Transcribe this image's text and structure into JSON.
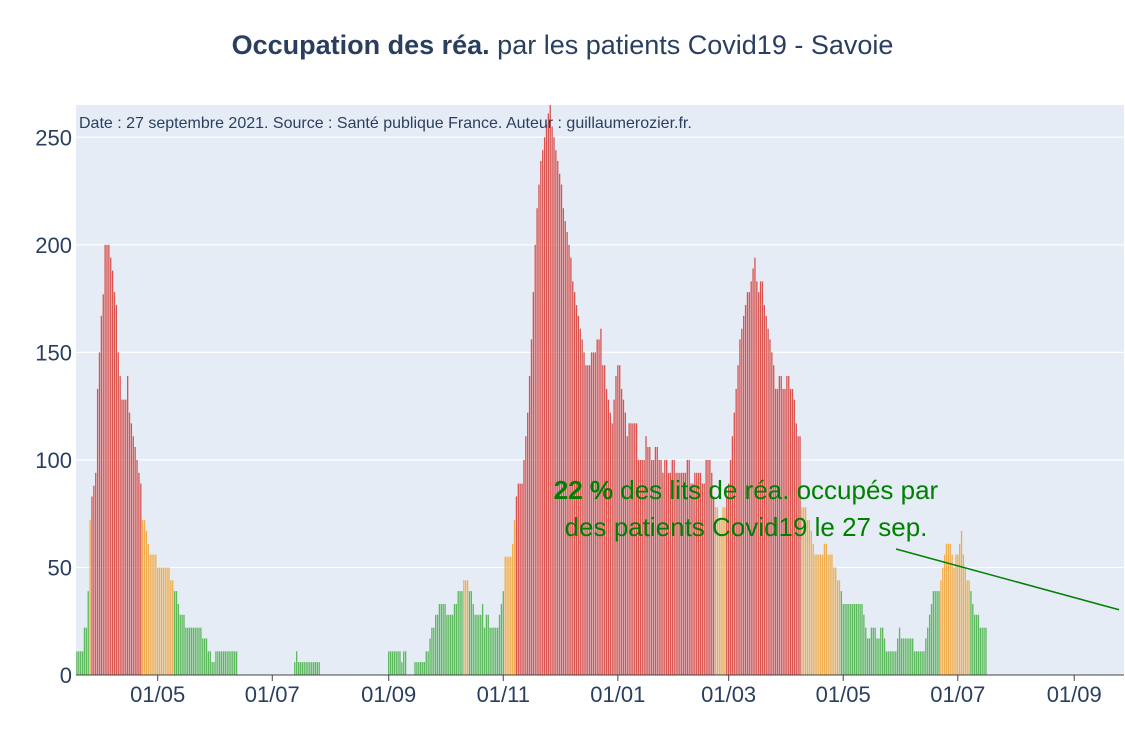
{
  "title": {
    "bold": "Occupation des réa.",
    "rest": " par les patients Covid19 - Savoie"
  },
  "colors": {
    "plot_bg": "#e5ecf6",
    "grid": "#ffffff",
    "red": "#d9534f",
    "orange": "#f0ad4e",
    "green": "#5cb85c",
    "annotation": "#008000",
    "text": "#2a3f5f"
  },
  "chart_data": {
    "type": "bar",
    "title": "Occupation des réa. par les patients Covid19 - Savoie",
    "source_note": "Date : 27 septembre 2021. Source : Santé publique France. Auteur : guillaumerozier.fr.",
    "xlabel": "",
    "ylabel": "",
    "ylim": [
      0,
      265
    ],
    "yticks": [
      0,
      50,
      100,
      150,
      200,
      250
    ],
    "xlim": [
      "2020-03-19",
      "2021-09-27"
    ],
    "xticks": [
      {
        "date": "2020-05-01",
        "label": "01/05"
      },
      {
        "date": "2020-07-01",
        "label": "01/07"
      },
      {
        "date": "2020-09-01",
        "label": "01/09"
      },
      {
        "date": "2020-11-01",
        "label": "01/11"
      },
      {
        "date": "2021-01-01",
        "label": "01/01"
      },
      {
        "date": "2021-03-01",
        "label": "01/03"
      },
      {
        "date": "2021-05-01",
        "label": "01/05"
      },
      {
        "date": "2021-07-01",
        "label": "01/07"
      },
      {
        "date": "2021-09-01",
        "label": "01/09"
      }
    ],
    "color_rule": "percentage of ICU beds occupied: red when high, orange when moderate, green when low",
    "color_thresholds": {
      "orange_from": 40,
      "red_from": 80
    },
    "series": [
      {
        "x_start": "2020-03-19",
        "x_step_days": 1,
        "values": [
          11,
          11,
          11,
          11,
          22,
          22,
          39,
          72,
          83,
          88,
          94,
          133,
          150,
          167,
          177,
          200,
          200,
          200,
          194,
          188,
          178,
          172,
          150,
          139,
          128,
          128,
          128,
          139,
          122,
          117,
          111,
          106,
          100,
          94,
          89,
          72,
          72,
          67,
          61,
          56,
          56,
          56,
          56,
          50,
          50,
          50,
          50,
          50,
          50,
          50,
          44,
          44,
          39,
          39,
          33,
          28,
          28,
          28,
          22,
          22,
          22,
          22,
          22,
          22,
          22,
          22,
          22,
          17,
          17,
          17,
          11,
          11,
          6,
          6,
          11,
          11,
          11,
          11,
          11,
          11,
          11,
          11,
          11,
          11,
          11,
          11,
          0,
          0,
          0,
          0,
          0,
          0,
          0,
          0,
          0,
          0,
          0,
          0,
          0,
          0,
          0,
          0,
          0,
          0,
          0,
          0,
          0,
          0,
          0,
          0,
          0,
          0,
          0,
          0,
          0,
          0,
          6,
          11,
          6,
          6,
          6,
          6,
          6,
          6,
          6,
          6,
          6,
          6,
          6,
          6,
          0,
          0,
          0,
          0,
          0,
          0,
          0,
          0,
          0,
          0,
          0,
          0,
          0,
          0,
          0,
          0,
          0,
          0,
          0,
          0,
          0,
          0,
          0,
          0,
          0,
          0,
          0,
          0,
          0,
          0,
          0,
          0,
          0,
          0,
          0,
          0,
          11,
          11,
          11,
          11,
          11,
          11,
          11,
          6,
          11,
          11,
          0,
          0,
          0,
          0,
          6,
          6,
          6,
          6,
          6,
          6,
          11,
          11,
          17,
          22,
          22,
          28,
          28,
          33,
          33,
          33,
          33,
          28,
          28,
          28,
          28,
          33,
          33,
          39,
          39,
          39,
          44,
          44,
          44,
          39,
          39,
          33,
          28,
          28,
          28,
          28,
          33,
          22,
          28,
          28,
          22,
          22,
          22,
          22,
          22,
          28,
          33,
          39,
          55,
          55,
          55,
          55,
          61,
          72,
          83,
          89,
          89,
          89,
          100,
          111,
          122,
          139,
          156,
          178,
          200,
          217,
          228,
          239,
          244,
          250,
          256,
          261,
          267,
          255,
          250,
          244,
          239,
          233,
          228,
          217,
          211,
          206,
          200,
          194,
          183,
          178,
          172,
          167,
          161,
          156,
          150,
          144,
          144,
          144,
          150,
          150,
          150,
          156,
          156,
          161,
          144,
          144,
          133,
          128,
          122,
          117,
          128,
          139,
          144,
          144,
          133,
          128,
          122,
          111,
          117,
          117,
          117,
          117,
          117,
          100,
          100,
          100,
          100,
          111,
          106,
          106,
          100,
          100,
          106,
          106,
          100,
          100,
          94,
          100,
          100,
          94,
          94,
          100,
          100,
          94,
          94,
          94,
          94,
          94,
          94,
          100,
          100,
          89,
          89,
          94,
          94,
          94,
          94,
          89,
          89,
          100,
          100,
          100,
          94,
          83,
          78,
          78,
          72,
          72,
          78,
          78,
          83,
          89,
          100,
          111,
          122,
          133,
          144,
          156,
          161,
          167,
          172,
          178,
          178,
          183,
          189,
          194,
          183,
          178,
          183,
          183,
          172,
          167,
          161,
          156,
          150,
          144,
          133,
          133,
          139,
          139,
          133,
          133,
          139,
          139,
          133,
          133,
          128,
          117,
          111,
          111,
          78,
          78,
          78,
          72,
          72,
          67,
          61,
          56,
          56,
          56,
          56,
          56,
          61,
          61,
          56,
          56,
          56,
          50,
          50,
          44,
          44,
          39,
          33,
          33,
          33,
          33,
          33,
          33,
          33,
          33,
          33,
          33,
          33,
          28,
          22,
          17,
          17,
          22,
          22,
          22,
          17,
          17,
          22,
          22,
          17,
          11,
          11,
          11,
          11,
          11,
          11,
          17,
          22,
          17,
          17,
          17,
          17,
          17,
          17,
          17,
          11,
          11,
          11,
          11,
          11,
          11,
          17,
          22,
          28,
          33,
          39,
          39,
          39,
          39,
          44,
          50,
          56,
          61,
          61,
          61,
          56,
          50,
          56,
          56,
          61,
          67,
          56,
          50,
          44,
          44,
          39,
          33,
          28,
          28,
          28,
          22,
          22,
          22,
          22
        ]
      }
    ]
  },
  "annotation": {
    "percent": "22",
    "percent_suffix": " %",
    "line1_rest": " des lits de réa. occupés par",
    "line2": "des patients Covid19 le 27 sep.",
    "arrow_to": {
      "date": "2021-09-27",
      "value": 28
    }
  }
}
